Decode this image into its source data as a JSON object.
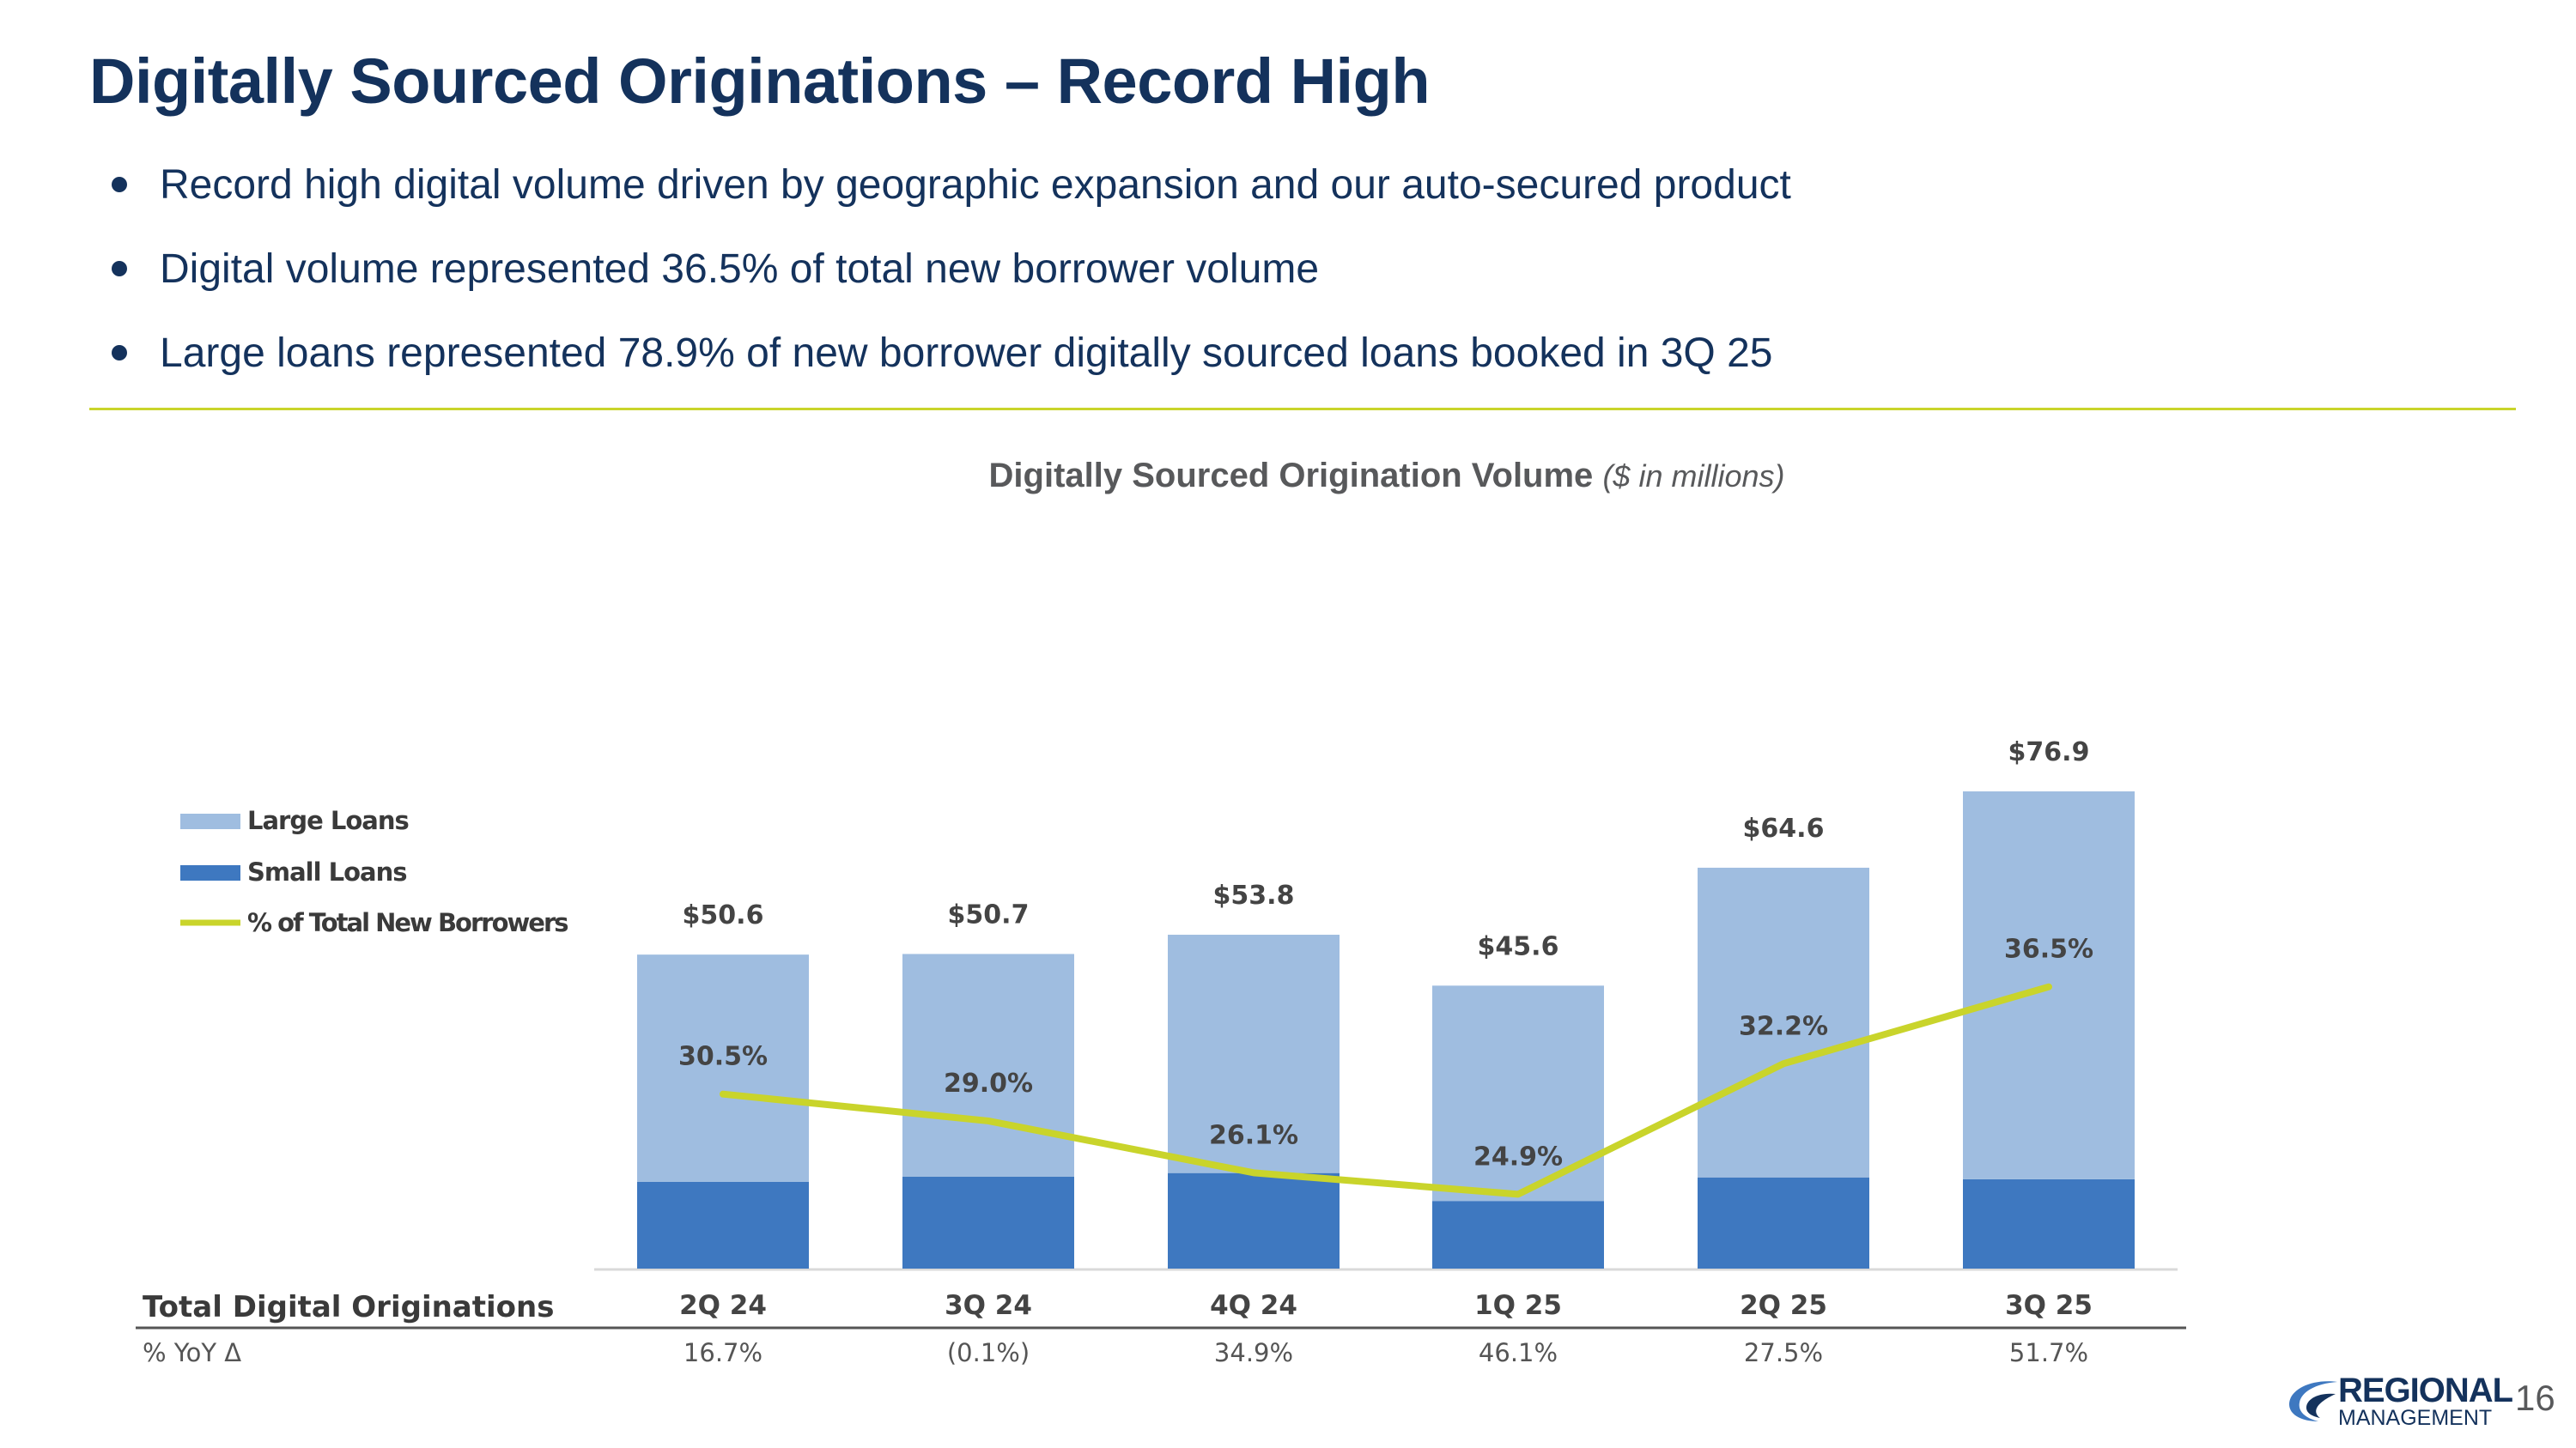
{
  "slide": {
    "title": "Digitally Sourced Originations – Record High",
    "bullets": [
      "Record high digital volume driven by geographic expansion and our auto-secured product",
      "Digital volume represented 36.5% of total new borrower volume",
      "Large loans represented 78.9% of new borrower digitally sourced loans booked in 3Q 25"
    ],
    "page_number": "16",
    "logo": {
      "word1": "REGIONAL",
      "word2": "MANAGEMENT"
    }
  },
  "colors": {
    "title": "#14325c",
    "divider": "#c9d42b",
    "large_loans": "#9fbde0",
    "small_loans": "#3e78c0",
    "line": "#c9d42b",
    "label_text": "#444444"
  },
  "chart_data": {
    "type": "bar",
    "title": "Digitally Sourced Origination Volume",
    "subtitle": "($ in millions)",
    "categories": [
      "2Q 24",
      "3Q 24",
      "4Q 24",
      "1Q 25",
      "2Q 25",
      "3Q 25"
    ],
    "totals": [
      "$50.6",
      "$50.7",
      "$53.8",
      "$45.6",
      "$64.6",
      "$76.9"
    ],
    "series": [
      {
        "name": "Large Loans",
        "type": "bar",
        "stack": "volume",
        "values": [
          36.6,
          35.9,
          38.4,
          34.7,
          49.9,
          62.5
        ]
      },
      {
        "name": "Small Loans",
        "type": "bar",
        "stack": "volume",
        "values": [
          14.0,
          14.8,
          15.4,
          10.9,
          14.7,
          14.4
        ]
      },
      {
        "name": "% of Total New Borrowers",
        "type": "line",
        "values": [
          30.5,
          29.0,
          26.1,
          24.9,
          32.2,
          36.5
        ],
        "labels": [
          "30.5%",
          "29.0%",
          "26.1%",
          "24.9%",
          "32.2%",
          "36.5%"
        ]
      }
    ],
    "table": {
      "row_header": "Total Digital Originations",
      "yoy_label": "% YoY Δ",
      "yoy_values": [
        "16.7%",
        "(0.1%)",
        "34.9%",
        "46.1%",
        "27.5%",
        "51.7%"
      ]
    },
    "legend_position": "left",
    "grid": false
  }
}
